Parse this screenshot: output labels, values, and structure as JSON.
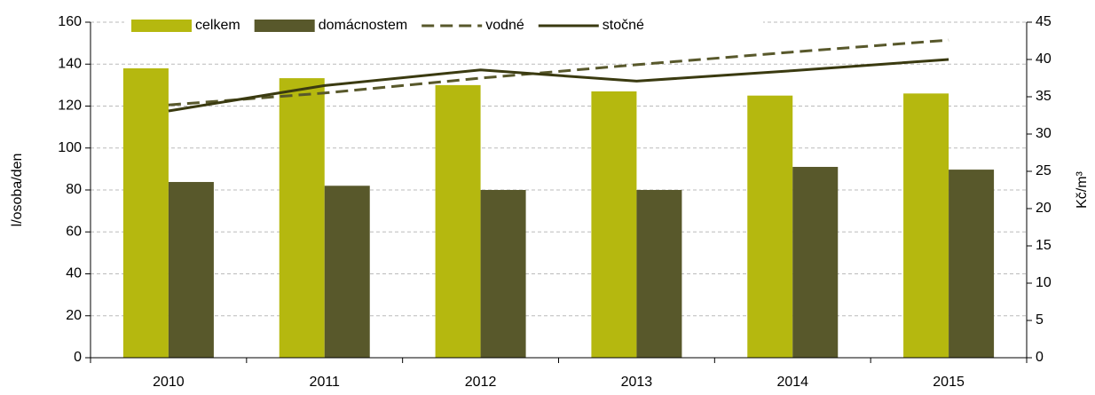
{
  "chart_data": {
    "type": "bar_line",
    "categories": [
      "2010",
      "2011",
      "2012",
      "2013",
      "2014",
      "2015"
    ],
    "series": [
      {
        "name": "celkem",
        "type": "bar",
        "color": "#b5b80f",
        "values": [
          138,
          133.3,
          130,
          127,
          125,
          126
        ]
      },
      {
        "name": "domácnostem",
        "type": "bar",
        "color": "#58582b",
        "values": [
          83.8,
          82,
          80,
          80,
          91,
          89.7
        ]
      },
      {
        "name": "vodné",
        "type": "line",
        "dashed": true,
        "axis": "y2",
        "color": "#58582b",
        "values": [
          33.9,
          35.5,
          37.5,
          39.3,
          41,
          42.6
        ]
      },
      {
        "name": "stočné",
        "type": "line",
        "dashed": false,
        "axis": "y2",
        "color": "#3a3a10",
        "values": [
          33.1,
          36.5,
          38.6,
          37.1,
          38.5,
          40
        ]
      }
    ],
    "ylabel": "l/osoba/den",
    "y2label": "Kč/m³",
    "ylim": [
      0,
      160
    ],
    "yticks": [
      0,
      20,
      40,
      60,
      80,
      100,
      120,
      140,
      160
    ],
    "y2lim": [
      0,
      45
    ],
    "y2ticks": [
      0,
      5,
      10,
      15,
      20,
      25,
      30,
      35,
      40,
      45
    ],
    "grid": true,
    "legend": "top"
  }
}
